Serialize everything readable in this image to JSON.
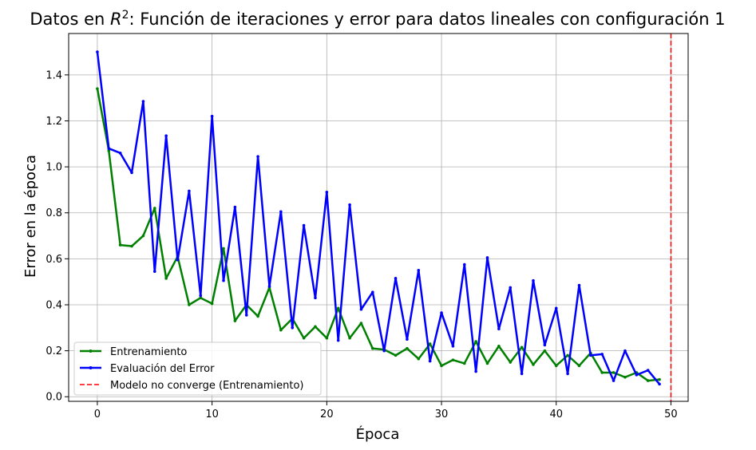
{
  "chart_data": {
    "type": "line",
    "title_prefix": "Datos en ",
    "title_math_base": "R",
    "title_math_sup": "2",
    "title_suffix": ": Función de iteraciones y error para datos lineales con configuración 1",
    "xlabel": "Época",
    "ylabel": "Error en la época",
    "xlim": [
      -2.5,
      51.5
    ],
    "ylim": [
      -0.02,
      1.58
    ],
    "xticks": [
      0,
      10,
      20,
      30,
      40,
      50
    ],
    "yticks": [
      0.0,
      0.2,
      0.4,
      0.6,
      0.8,
      1.0,
      1.2,
      1.4
    ],
    "ytick_labels": [
      "0.0",
      "0.2",
      "0.4",
      "0.6",
      "0.8",
      "1.0",
      "1.2",
      "1.4"
    ],
    "grid": true,
    "legend_position": "lower-left",
    "x": [
      0,
      1,
      2,
      3,
      4,
      5,
      6,
      7,
      8,
      9,
      10,
      11,
      12,
      13,
      14,
      15,
      16,
      17,
      18,
      19,
      20,
      21,
      22,
      23,
      24,
      25,
      26,
      27,
      28,
      29,
      30,
      31,
      32,
      33,
      34,
      35,
      36,
      37,
      38,
      39,
      40,
      41,
      42,
      43,
      44,
      45,
      46,
      47,
      48,
      49
    ],
    "series": [
      {
        "name": "Entrenamiento",
        "color": "#008000",
        "values": [
          1.34,
          1.07,
          0.66,
          0.655,
          0.7,
          0.82,
          0.515,
          0.61,
          0.4,
          0.43,
          0.405,
          0.645,
          0.33,
          0.4,
          0.35,
          0.475,
          0.29,
          0.34,
          0.255,
          0.305,
          0.255,
          0.385,
          0.255,
          0.32,
          0.21,
          0.205,
          0.18,
          0.21,
          0.165,
          0.23,
          0.135,
          0.16,
          0.145,
          0.24,
          0.145,
          0.22,
          0.15,
          0.215,
          0.14,
          0.2,
          0.135,
          0.18,
          0.135,
          0.19,
          0.105,
          0.105,
          0.085,
          0.105,
          0.07,
          0.075
        ]
      },
      {
        "name": "Evaluación del Error",
        "color": "#0000ff",
        "values": [
          1.5,
          1.08,
          1.06,
          0.975,
          1.285,
          0.545,
          1.135,
          0.595,
          0.895,
          0.44,
          1.22,
          0.505,
          0.825,
          0.355,
          1.045,
          0.48,
          0.805,
          0.3,
          0.745,
          0.43,
          0.89,
          0.245,
          0.835,
          0.38,
          0.455,
          0.2,
          0.515,
          0.25,
          0.55,
          0.155,
          0.365,
          0.22,
          0.575,
          0.11,
          0.605,
          0.295,
          0.475,
          0.1,
          0.505,
          0.225,
          0.385,
          0.1,
          0.485,
          0.18,
          0.185,
          0.07,
          0.2,
          0.095,
          0.115,
          0.055
        ]
      }
    ],
    "vline": {
      "name": "Modelo no converge (Entrenamiento)",
      "x": 50,
      "color": "#ff0000"
    }
  }
}
